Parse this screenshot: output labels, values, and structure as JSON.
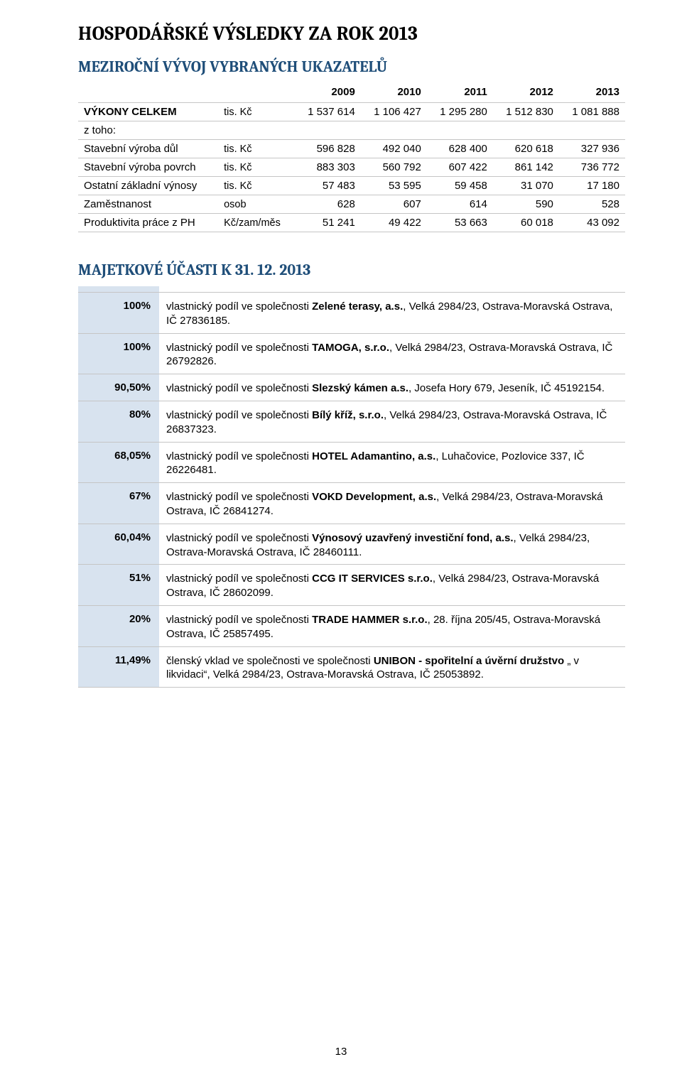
{
  "title_main": "HOSPODÁŘSKÉ VÝSLEDKY ZA ROK 2013",
  "title_sub1": "MEZIROČNÍ VÝVOJ VYBRANÝCH UKAZATELŮ",
  "title_sub2": "MAJETKOVÉ ÚČASTI K 31. 12. 2013",
  "page_number": "13",
  "indicators_table": {
    "header_blank": "",
    "header_years": [
      "2009",
      "2010",
      "2011",
      "2012",
      "2013"
    ],
    "rows": [
      {
        "label": "VÝKONY CELKEM",
        "bold": true,
        "unit": "tis. Kč",
        "vals": [
          "1 537 614",
          "1 106 427",
          "1 295 280",
          "1 512 830",
          "1 081 888"
        ]
      },
      {
        "label": "z toho:",
        "bold": false,
        "unit": "",
        "vals": [
          "",
          "",
          "",
          "",
          ""
        ]
      },
      {
        "label": "Stavební výroba důl",
        "bold": false,
        "unit": "tis. Kč",
        "vals": [
          "596 828",
          "492 040",
          "628 400",
          "620 618",
          "327 936"
        ]
      },
      {
        "label": "Stavební výroba povrch",
        "bold": false,
        "unit": "tis. Kč",
        "vals": [
          "883 303",
          "560 792",
          "607 422",
          "861 142",
          "736 772"
        ]
      },
      {
        "label": "Ostatní základní výnosy",
        "bold": false,
        "unit": "tis. Kč",
        "vals": [
          "57 483",
          "53 595",
          "59 458",
          "31 070",
          "17 180"
        ]
      },
      {
        "label": "Zaměstnanost",
        "bold": false,
        "unit": "osob",
        "vals": [
          "628",
          "607",
          "614",
          "590",
          "528"
        ]
      },
      {
        "label": "Produktivita práce z PH",
        "bold": false,
        "unit": "Kč/zam/měs",
        "vals": [
          "51 241",
          "49 422",
          "53 663",
          "60 018",
          "43 092"
        ]
      }
    ]
  },
  "equity_table": {
    "header_bg": "#d8e3ef",
    "cell_border": "#c5c5c5",
    "rows": [
      {
        "pct": "100%",
        "pre": "vlastnický podíl ve společnosti ",
        "bold": "Zelené terasy, a.s.",
        "post": ", Velká 2984/23, Ostrava-Moravská Ostrava, IČ 27836185."
      },
      {
        "pct": "100%",
        "pre": "vlastnický podíl ve společnosti ",
        "bold": "TAMOGA, s.r.o.",
        "post": ", Velká 2984/23, Ostrava-Moravská Ostrava, IČ 26792826."
      },
      {
        "pct": "90,50%",
        "pre": "vlastnický podíl ve společnosti ",
        "bold": "Slezský kámen a.s.",
        "post": ", Josefa Hory 679, Jeseník, IČ 45192154."
      },
      {
        "pct": "80%",
        "pre": "vlastnický podíl ve společnosti ",
        "bold": "Bílý kříž, s.r.o.",
        "post": ", Velká 2984/23, Ostrava-Moravská Ostrava, IČ 26837323."
      },
      {
        "pct": "68,05%",
        "pre": "vlastnický podíl ve společnosti ",
        "bold": "HOTEL Adamantino, a.s.",
        "post": ", Luhačovice, Pozlovice 337,  IČ 26226481."
      },
      {
        "pct": "67%",
        "pre": "vlastnický podíl ve společnosti ",
        "bold": "VOKD Development, a.s.",
        "post": ", Velká 2984/23, Ostrava-Moravská Ostrava, IČ 26841274."
      },
      {
        "pct": "60,04%",
        "pre": "vlastnický podíl ve společnosti ",
        "bold": "Výnosový uzavřený investiční fond, a.s.",
        "post": ", Velká 2984/23, Ostrava-Moravská Ostrava, IČ 28460111."
      },
      {
        "pct": "51%",
        "pre": "vlastnický podíl ve společnosti ",
        "bold": "CCG IT SERVICES s.r.o.",
        "post": ", Velká 2984/23, Ostrava-Moravská Ostrava, IČ 28602099."
      },
      {
        "pct": "20%",
        "pre": "vlastnický podíl ve společnosti ",
        "bold": "TRADE HAMMER s.r.o.",
        "post": ", 28. října 205/45, Ostrava-Moravská Ostrava, IČ 25857495."
      },
      {
        "pct": "11,49%",
        "pre": "členský vklad ve společnosti ve společnosti ",
        "bold": "UNIBON - spořitelní a úvěrní družstvo",
        "post": " „ v likvidaci“, Velká 2984/23, Ostrava-Moravská Ostrava, IČ 25053892."
      }
    ]
  },
  "colors": {
    "heading_blue": "#1f4e79",
    "equity_pct_bg": "#d8e3ef",
    "divider": "#c5c5c5",
    "text": "#000000",
    "background": "#ffffff"
  }
}
